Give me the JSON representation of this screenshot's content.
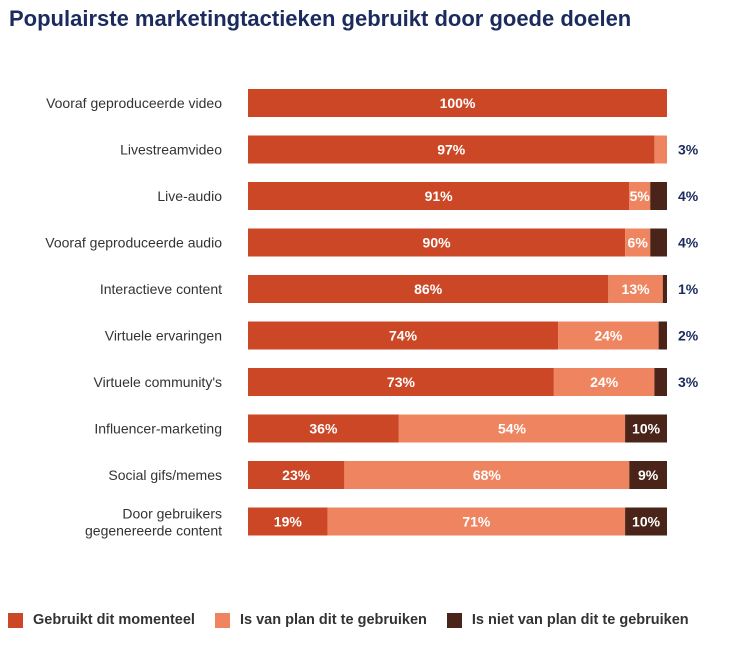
{
  "title": "Populairste marketingtactieken gebruikt door goede doelen",
  "colors": {
    "current": "#cc4726",
    "planned": "#ef8560",
    "not_planned": "#4a2418",
    "title": "#1b2b5e",
    "outside_label": "#1b2b5e"
  },
  "legend": [
    {
      "label": "Gebruikt dit momenteel",
      "color": "#cc4726"
    },
    {
      "label": "Is van plan dit te gebruiken",
      "color": "#ef8560"
    },
    {
      "label": "Is niet van plan dit te gebruiken",
      "color": "#4a2418"
    }
  ],
  "chart_data": {
    "type": "bar",
    "orientation": "horizontal",
    "stacked": true,
    "title": "Populairste marketingtactieken gebruikt door goede doelen",
    "xlim": [
      0,
      100
    ],
    "grid": false,
    "legend_position": "bottom",
    "categories": [
      "Vooraf geproduceerde video",
      "Livestreamvideo",
      "Live-audio",
      "Vooraf geproduceerde audio",
      "Interactieve content",
      "Virtuele ervaringen",
      "Virtuele community's",
      "Influencer-marketing",
      "Social gifs/memes",
      "Door gebruikers gegenereerde content"
    ],
    "series": [
      {
        "name": "Gebruikt dit momenteel",
        "values": [
          100,
          97,
          91,
          90,
          86,
          74,
          73,
          36,
          23,
          19
        ],
        "labels": [
          "100%",
          "97%",
          "91%",
          "90%",
          "86%",
          "74%",
          "73%",
          "36%",
          "23%",
          "19%"
        ]
      },
      {
        "name": "Is van plan dit te gebruiken",
        "values": [
          0,
          3,
          5,
          6,
          13,
          24,
          24,
          54,
          68,
          71
        ],
        "labels": [
          "",
          "",
          "5%",
          "6%",
          "13%",
          "24%",
          "24%",
          "54%",
          "68%",
          "71%"
        ]
      },
      {
        "name": "Is niet van plan dit te gebruiken",
        "values": [
          0,
          0,
          4,
          4,
          1,
          2,
          3,
          10,
          9,
          10
        ],
        "labels": [
          "",
          "",
          "",
          "",
          "",
          "",
          "",
          "10%",
          "9%",
          "10%"
        ]
      }
    ],
    "outside_labels": [
      "",
      "3%",
      "4%",
      "4%",
      "1%",
      "2%",
      "3%",
      "",
      "",
      ""
    ]
  }
}
